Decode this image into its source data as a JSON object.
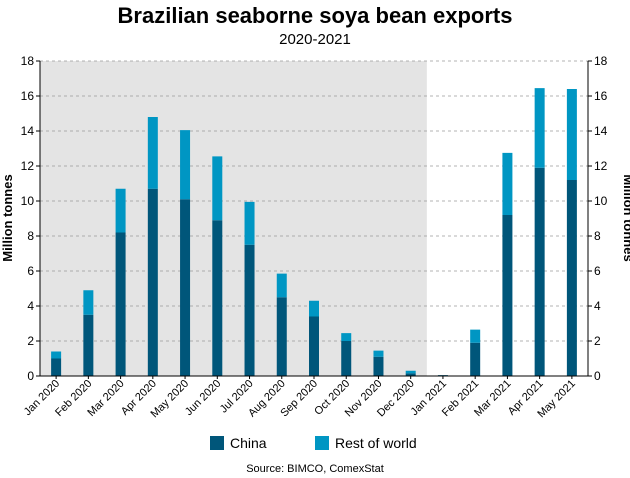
{
  "chart_data": {
    "type": "bar",
    "stacked": true,
    "title": "Brazilian seaborne soya bean exports",
    "subtitle": "2020-2021",
    "ylabel": "Million tonnes",
    "ylabel_right": "Million tonnes",
    "source": "Source: BIMCO, ComexStat",
    "ylim": [
      0,
      18
    ],
    "yticks": [
      0,
      2,
      4,
      6,
      8,
      10,
      12,
      14,
      16,
      18
    ],
    "grid": "horizontal-dashed",
    "legend_position": "bottom",
    "shaded_region": {
      "from": "Jan 2020",
      "to": "Dec 2020",
      "color": "#e4e4e4"
    },
    "categories": [
      "Jan 2020",
      "Feb 2020",
      "Mar 2020",
      "Apr 2020",
      "May 2020",
      "Jun 2020",
      "Jul 2020",
      "Aug 2020",
      "Sep 2020",
      "Oct 2020",
      "Nov 2020",
      "Dec 2020",
      "Jan 2021",
      "Feb 2021",
      "Mar 2021",
      "Apr 2021",
      "May 2021"
    ],
    "series": [
      {
        "name": "China",
        "color": "#00567a",
        "values": [
          1.0,
          3.5,
          8.2,
          10.7,
          10.1,
          8.9,
          7.5,
          4.5,
          3.4,
          2.0,
          1.1,
          0.15,
          0.05,
          1.9,
          9.2,
          11.9,
          11.2
        ]
      },
      {
        "name": "Rest of world",
        "color": "#0096c3",
        "values": [
          0.4,
          1.4,
          2.5,
          4.1,
          3.95,
          3.65,
          2.45,
          1.35,
          0.9,
          0.45,
          0.35,
          0.15,
          0.0,
          0.75,
          3.55,
          4.55,
          5.2
        ]
      }
    ]
  }
}
